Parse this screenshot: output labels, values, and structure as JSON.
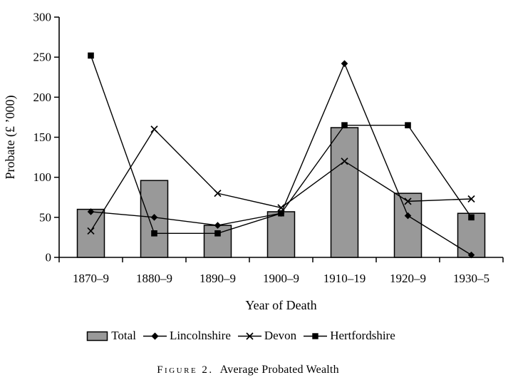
{
  "figure": {
    "caption_label": "Figure 2.",
    "caption_title": "Average Probated Wealth"
  },
  "chart_data": {
    "type": "combo-bar-line",
    "title": "Average Probated Wealth",
    "xlabel": "Year of Death",
    "ylabel": "Probate (£ ’000)",
    "ylim": [
      0,
      300
    ],
    "yticks": [
      0,
      50,
      100,
      150,
      200,
      250,
      300
    ],
    "grid": "off",
    "legend_position": "bottom",
    "categories": [
      "1870–9",
      "1880–9",
      "1890–9",
      "1900–9",
      "1910–19",
      "1920–9",
      "1930–5"
    ],
    "bar_series": {
      "name": "Total",
      "values": [
        60,
        96,
        40,
        57,
        162,
        80,
        55
      ],
      "fill": "#999999"
    },
    "series": [
      {
        "name": "Lincolnshire",
        "marker": "diamond",
        "values": [
          57,
          50,
          40,
          55,
          242,
          52,
          3
        ]
      },
      {
        "name": "Devon",
        "marker": "x",
        "values": [
          33,
          160,
          80,
          62,
          120,
          70,
          73
        ]
      },
      {
        "name": "Hertfordshire",
        "marker": "square",
        "values": [
          252,
          30,
          30,
          55,
          165,
          165,
          50
        ]
      }
    ],
    "colors": {
      "line": "#000000",
      "axis": "#000000",
      "bar_fill": "#999999",
      "bar_stroke": "#000000",
      "background": "#ffffff"
    }
  }
}
